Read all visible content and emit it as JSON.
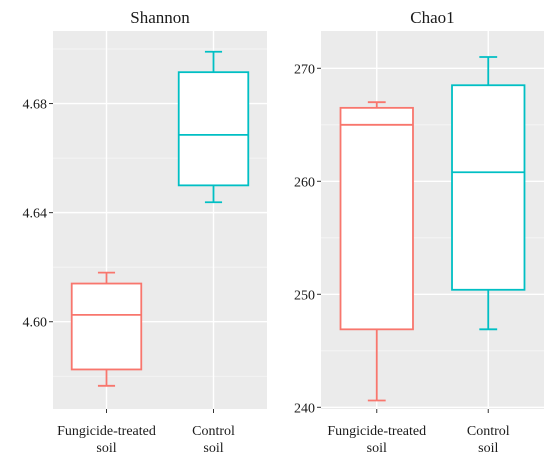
{
  "chart_data": [
    {
      "type": "box",
      "title": "Shannon",
      "categories": [
        "Fungicide-treated\nsoil",
        "Control\nsoil"
      ],
      "colors": [
        "#f8766d",
        "#00bfc4"
      ],
      "ylim": [
        4.568,
        4.7066
      ],
      "yticks": [
        4.6,
        4.64,
        4.68
      ],
      "ytick_labels": [
        "4.60",
        "4.64",
        "4.68"
      ],
      "boxes": [
        {
          "min": 4.5765,
          "q1": 4.5825,
          "median": 4.6025,
          "q3": 4.614,
          "max": 4.618
        },
        {
          "min": 4.6438,
          "q1": 4.65,
          "median": 4.6685,
          "q3": 4.6915,
          "max": 4.699
        }
      ]
    },
    {
      "type": "box",
      "title": "Chao1",
      "categories": [
        "Fungicide-treated\nsoil",
        "Control\nsoil"
      ],
      "colors": [
        "#f8766d",
        "#00bfc4"
      ],
      "ylim": [
        239.85,
        273.3
      ],
      "yticks": [
        240,
        250,
        260,
        270
      ],
      "ytick_labels": [
        "240",
        "250",
        "260",
        "270"
      ],
      "boxes": [
        {
          "min": 240.6,
          "q1": 246.9,
          "median": 265.0,
          "q3": 266.5,
          "max": 267.0
        },
        {
          "min": 246.9,
          "q1": 250.4,
          "median": 260.8,
          "q3": 268.5,
          "max": 271.0
        }
      ]
    }
  ]
}
